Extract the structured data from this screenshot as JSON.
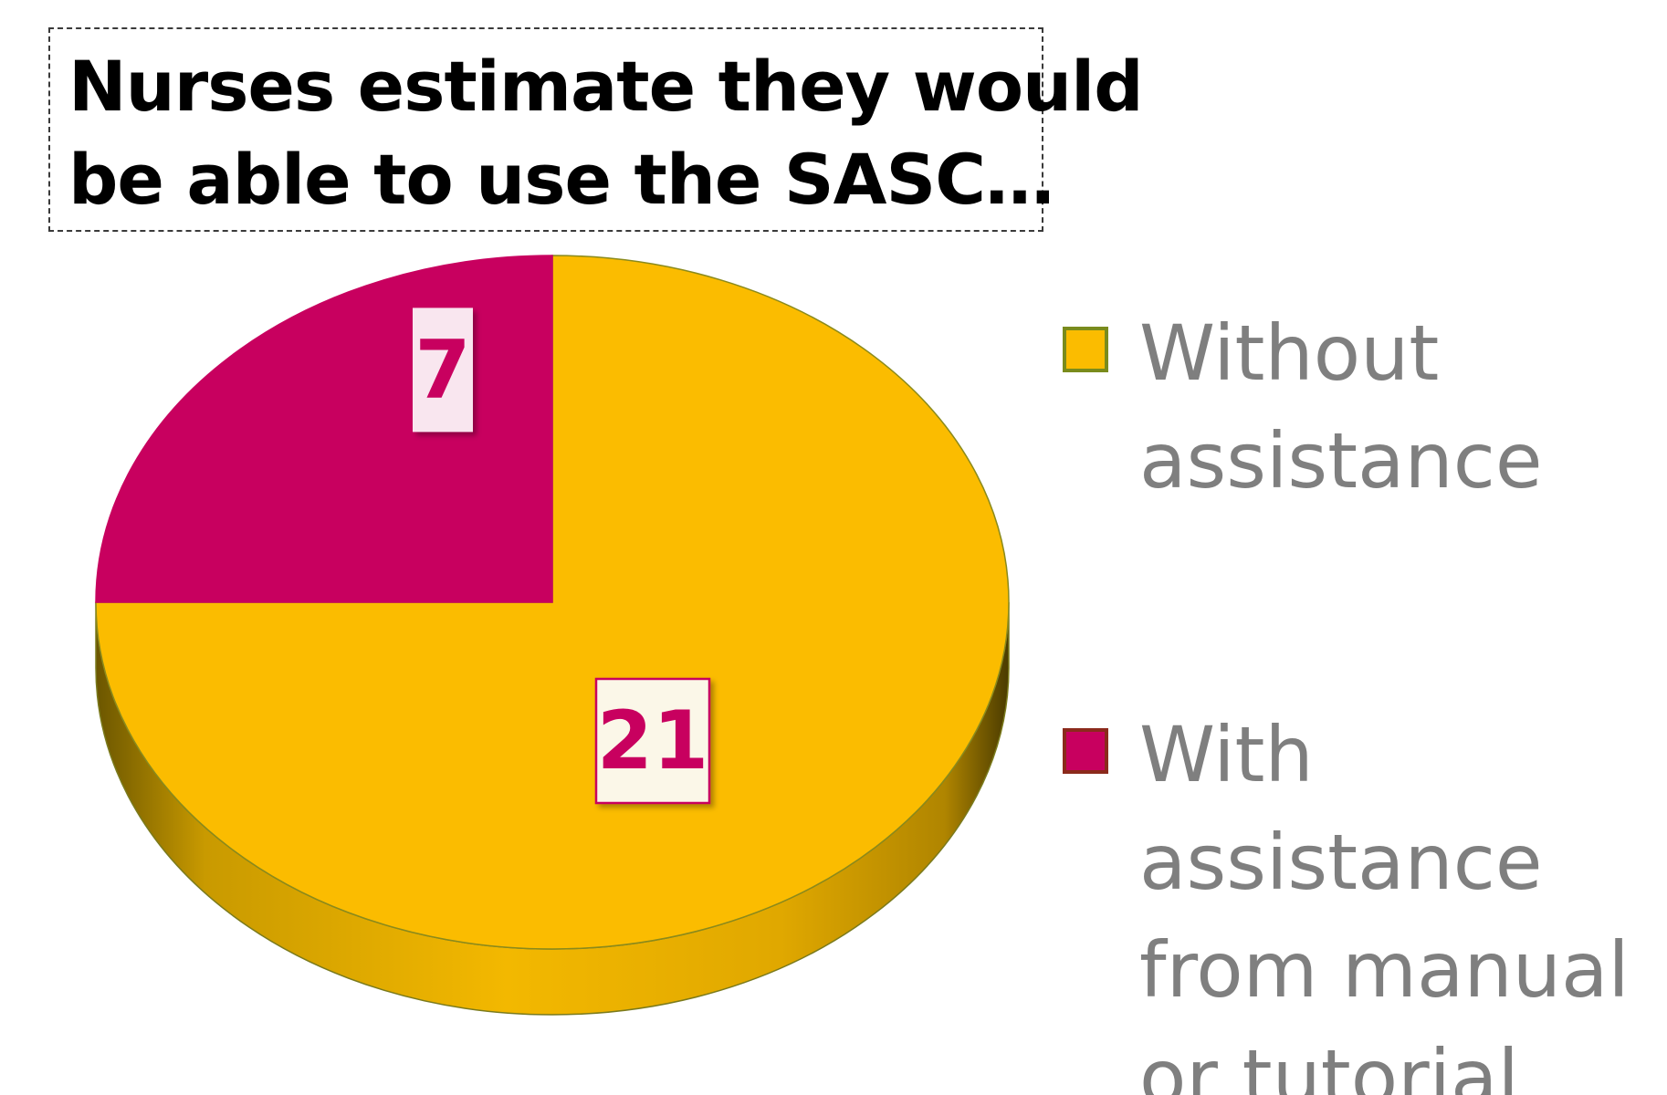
{
  "title_lines": [
    "Nurses estimate they would",
    "be able to use the SASC…"
  ],
  "chart_data": {
    "type": "pie",
    "title": "Nurses estimate they would be able to use the SASC…",
    "categories": [
      "Without assistance",
      "With assistance from manual or tutorial"
    ],
    "values": [
      21,
      7
    ],
    "data_labels": [
      "21",
      "7"
    ],
    "colors": [
      "#FBBC00",
      "#C8005F"
    ],
    "legend": "right",
    "style": "3d"
  },
  "legend": {
    "items": [
      {
        "label": "Without\nassistance",
        "fill": "#FBBC00",
        "border": "#7a8b1c"
      },
      {
        "label": "With\nassistance\nfrom manual\nor tutorial",
        "fill": "#C8005F",
        "border": "#8b2a1c"
      }
    ]
  }
}
